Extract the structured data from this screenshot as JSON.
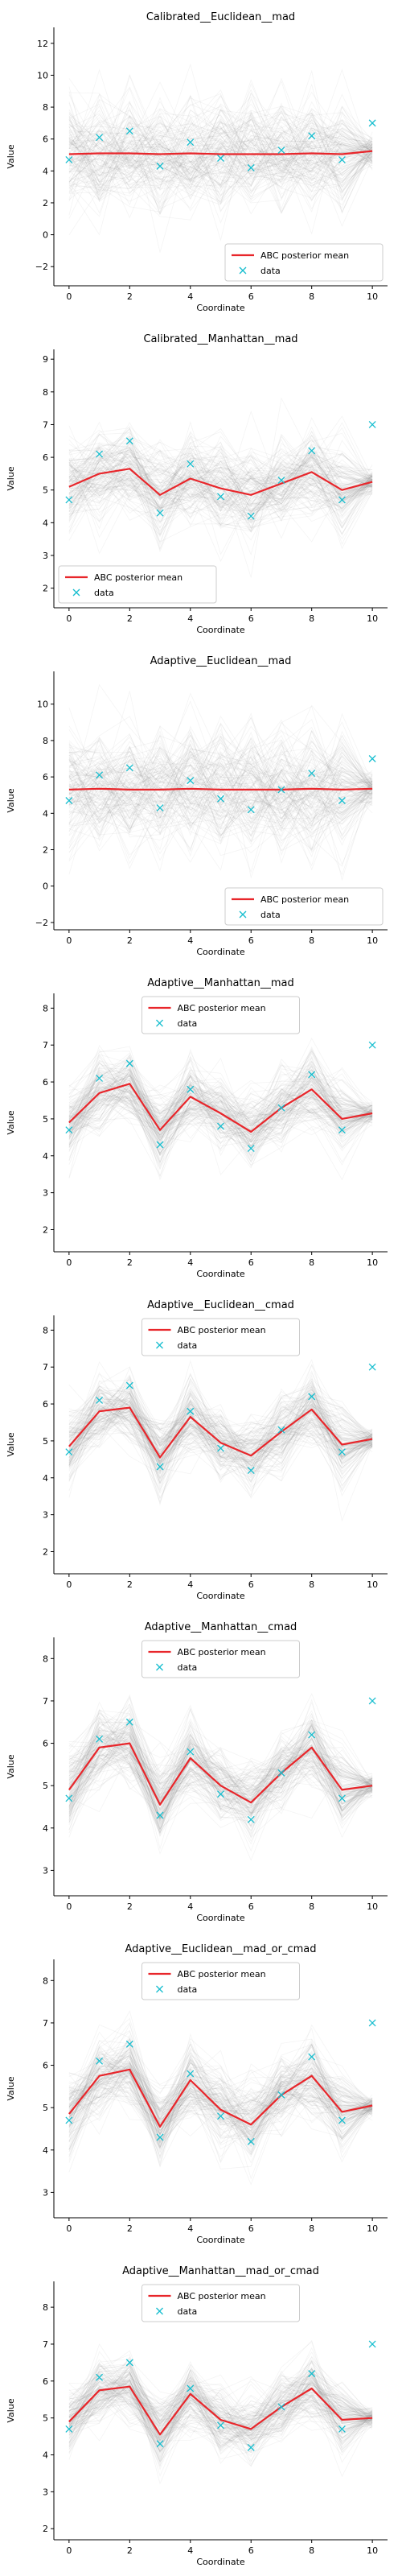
{
  "chart_data": [
    {
      "type": "line",
      "title": "Calibrated__Euclidean__mad",
      "xlabel": "Coordinate",
      "ylabel": "Value",
      "xlim": [
        -0.5,
        10.5
      ],
      "ylim": [
        -3.2,
        13.0
      ],
      "yticks": [
        -2,
        0,
        2,
        4,
        6,
        8,
        10,
        12
      ],
      "xticks": [
        0,
        2,
        4,
        6,
        8,
        10
      ],
      "legend_loc": "lower-right",
      "x": [
        0,
        1,
        2,
        3,
        4,
        5,
        6,
        7,
        8,
        9,
        10
      ],
      "band_spread": 3.2,
      "series": [
        {
          "name": "ABC posterior mean",
          "kind": "line",
          "color": "#e8262b",
          "values": [
            5.05,
            5.1,
            5.1,
            5.05,
            5.1,
            5.05,
            5.05,
            5.05,
            5.1,
            5.05,
            5.25
          ]
        },
        {
          "name": "data",
          "kind": "marker",
          "color": "#17becf",
          "values": [
            4.7,
            6.1,
            6.5,
            4.3,
            5.8,
            4.8,
            4.2,
            5.3,
            6.2,
            4.7,
            7.0
          ]
        }
      ]
    },
    {
      "type": "line",
      "title": "Calibrated__Manhattan__mad",
      "xlabel": "Coordinate",
      "ylabel": "Value",
      "xlim": [
        -0.5,
        10.5
      ],
      "ylim": [
        1.4,
        9.3
      ],
      "yticks": [
        2,
        3,
        4,
        5,
        6,
        7,
        8,
        9
      ],
      "xticks": [
        0,
        2,
        4,
        6,
        8,
        10
      ],
      "legend_loc": "lower-left",
      "x": [
        0,
        1,
        2,
        3,
        4,
        5,
        6,
        7,
        8,
        9,
        10
      ],
      "band_spread": 1.25,
      "series": [
        {
          "name": "ABC posterior mean",
          "kind": "line",
          "color": "#e8262b",
          "values": [
            5.1,
            5.5,
            5.65,
            4.85,
            5.35,
            5.05,
            4.85,
            5.2,
            5.55,
            5.0,
            5.25
          ]
        },
        {
          "name": "data",
          "kind": "marker",
          "color": "#17becf",
          "values": [
            4.7,
            6.1,
            6.5,
            4.3,
            5.8,
            4.8,
            4.2,
            5.3,
            6.2,
            4.7,
            7.0
          ]
        }
      ]
    },
    {
      "type": "line",
      "title": "Adaptive__Euclidean__mad",
      "xlabel": "Coordinate",
      "ylabel": "Value",
      "xlim": [
        -0.5,
        10.5
      ],
      "ylim": [
        -2.4,
        11.8
      ],
      "yticks": [
        -2,
        0,
        2,
        4,
        6,
        8,
        10
      ],
      "xticks": [
        0,
        2,
        4,
        6,
        8,
        10
      ],
      "legend_loc": "lower-right",
      "x": [
        0,
        1,
        2,
        3,
        4,
        5,
        6,
        7,
        8,
        9,
        10
      ],
      "band_spread": 3.0,
      "series": [
        {
          "name": "ABC posterior mean",
          "kind": "line",
          "color": "#e8262b",
          "values": [
            5.3,
            5.35,
            5.3,
            5.3,
            5.35,
            5.3,
            5.3,
            5.3,
            5.35,
            5.3,
            5.35
          ]
        },
        {
          "name": "data",
          "kind": "marker",
          "color": "#17becf",
          "values": [
            4.7,
            6.1,
            6.5,
            4.3,
            5.8,
            4.8,
            4.2,
            5.3,
            6.2,
            4.7,
            7.0
          ]
        }
      ]
    },
    {
      "type": "line",
      "title": "Adaptive__Manhattan__mad",
      "xlabel": "Coordinate",
      "ylabel": "Value",
      "xlim": [
        -0.5,
        10.5
      ],
      "ylim": [
        1.4,
        8.4
      ],
      "yticks": [
        2,
        3,
        4,
        5,
        6,
        7,
        8
      ],
      "xticks": [
        0,
        2,
        4,
        6,
        8,
        10
      ],
      "legend_loc": "upper-center",
      "x": [
        0,
        1,
        2,
        3,
        4,
        5,
        6,
        7,
        8,
        9,
        10
      ],
      "band_spread": 0.95,
      "series": [
        {
          "name": "ABC posterior mean",
          "kind": "line",
          "color": "#e8262b",
          "values": [
            4.9,
            5.7,
            5.95,
            4.7,
            5.6,
            5.15,
            4.65,
            5.3,
            5.8,
            5.0,
            5.15
          ]
        },
        {
          "name": "data",
          "kind": "marker",
          "color": "#17becf",
          "values": [
            4.7,
            6.1,
            6.5,
            4.3,
            5.8,
            4.8,
            4.2,
            5.3,
            6.2,
            4.7,
            7.0
          ]
        }
      ]
    },
    {
      "type": "line",
      "title": "Adaptive__Euclidean__cmad",
      "xlabel": "Coordinate",
      "ylabel": "Value",
      "xlim": [
        -0.5,
        10.5
      ],
      "ylim": [
        1.4,
        8.4
      ],
      "yticks": [
        2,
        3,
        4,
        5,
        6,
        7,
        8
      ],
      "xticks": [
        0,
        2,
        4,
        6,
        8,
        10
      ],
      "legend_loc": "upper-center",
      "x": [
        0,
        1,
        2,
        3,
        4,
        5,
        6,
        7,
        8,
        9,
        10
      ],
      "band_spread": 0.9,
      "series": [
        {
          "name": "ABC posterior mean",
          "kind": "line",
          "color": "#e8262b",
          "values": [
            4.85,
            5.8,
            5.9,
            4.55,
            5.65,
            4.95,
            4.6,
            5.25,
            5.85,
            4.9,
            5.05
          ]
        },
        {
          "name": "data",
          "kind": "marker",
          "color": "#17becf",
          "values": [
            4.7,
            6.1,
            6.5,
            4.3,
            5.8,
            4.8,
            4.2,
            5.3,
            6.2,
            4.7,
            7.0
          ]
        }
      ]
    },
    {
      "type": "line",
      "title": "Adaptive__Manhattan__cmad",
      "xlabel": "Coordinate",
      "ylabel": "Value",
      "xlim": [
        -0.5,
        10.5
      ],
      "ylim": [
        2.4,
        8.5
      ],
      "yticks": [
        3,
        4,
        5,
        6,
        7,
        8
      ],
      "xticks": [
        0,
        2,
        4,
        6,
        8,
        10
      ],
      "legend_loc": "upper-center",
      "x": [
        0,
        1,
        2,
        3,
        4,
        5,
        6,
        7,
        8,
        9,
        10
      ],
      "band_spread": 0.85,
      "series": [
        {
          "name": "ABC posterior mean",
          "kind": "line",
          "color": "#e8262b",
          "values": [
            4.9,
            5.9,
            6.0,
            4.55,
            5.65,
            5.0,
            4.6,
            5.3,
            5.9,
            4.9,
            5.0
          ]
        },
        {
          "name": "data",
          "kind": "marker",
          "color": "#17becf",
          "values": [
            4.7,
            6.1,
            6.5,
            4.3,
            5.8,
            4.8,
            4.2,
            5.3,
            6.2,
            4.7,
            7.0
          ]
        }
      ]
    },
    {
      "type": "line",
      "title": "Adaptive__Euclidean__mad_or_cmad",
      "xlabel": "Coordinate",
      "ylabel": "Value",
      "xlim": [
        -0.5,
        10.5
      ],
      "ylim": [
        2.4,
        8.5
      ],
      "yticks": [
        3,
        4,
        5,
        6,
        7,
        8
      ],
      "xticks": [
        0,
        2,
        4,
        6,
        8,
        10
      ],
      "legend_loc": "upper-center",
      "x": [
        0,
        1,
        2,
        3,
        4,
        5,
        6,
        7,
        8,
        9,
        10
      ],
      "band_spread": 0.85,
      "series": [
        {
          "name": "ABC posterior mean",
          "kind": "line",
          "color": "#e8262b",
          "values": [
            4.85,
            5.75,
            5.9,
            4.55,
            5.65,
            4.95,
            4.6,
            5.3,
            5.75,
            4.9,
            5.05
          ]
        },
        {
          "name": "data",
          "kind": "marker",
          "color": "#17becf",
          "values": [
            4.7,
            6.1,
            6.5,
            4.3,
            5.8,
            4.8,
            4.2,
            5.3,
            6.2,
            4.7,
            7.0
          ]
        }
      ]
    },
    {
      "type": "line",
      "title": "Adaptive__Manhattan__mad_or_cmad",
      "xlabel": "Coordinate",
      "ylabel": "Value",
      "xlim": [
        -0.5,
        10.5
      ],
      "ylim": [
        1.7,
        8.7
      ],
      "yticks": [
        2,
        3,
        4,
        5,
        6,
        7,
        8
      ],
      "xticks": [
        0,
        2,
        4,
        6,
        8,
        10
      ],
      "legend_loc": "upper-center",
      "x": [
        0,
        1,
        2,
        3,
        4,
        5,
        6,
        7,
        8,
        9,
        10
      ],
      "band_spread": 0.85,
      "series": [
        {
          "name": "ABC posterior mean",
          "kind": "line",
          "color": "#e8262b",
          "values": [
            4.9,
            5.75,
            5.85,
            4.55,
            5.65,
            4.95,
            4.7,
            5.3,
            5.8,
            4.95,
            5.0
          ]
        },
        {
          "name": "data",
          "kind": "marker",
          "color": "#17becf",
          "values": [
            4.7,
            6.1,
            6.5,
            4.3,
            5.8,
            4.8,
            4.2,
            5.3,
            6.2,
            4.7,
            7.0
          ]
        }
      ]
    }
  ]
}
